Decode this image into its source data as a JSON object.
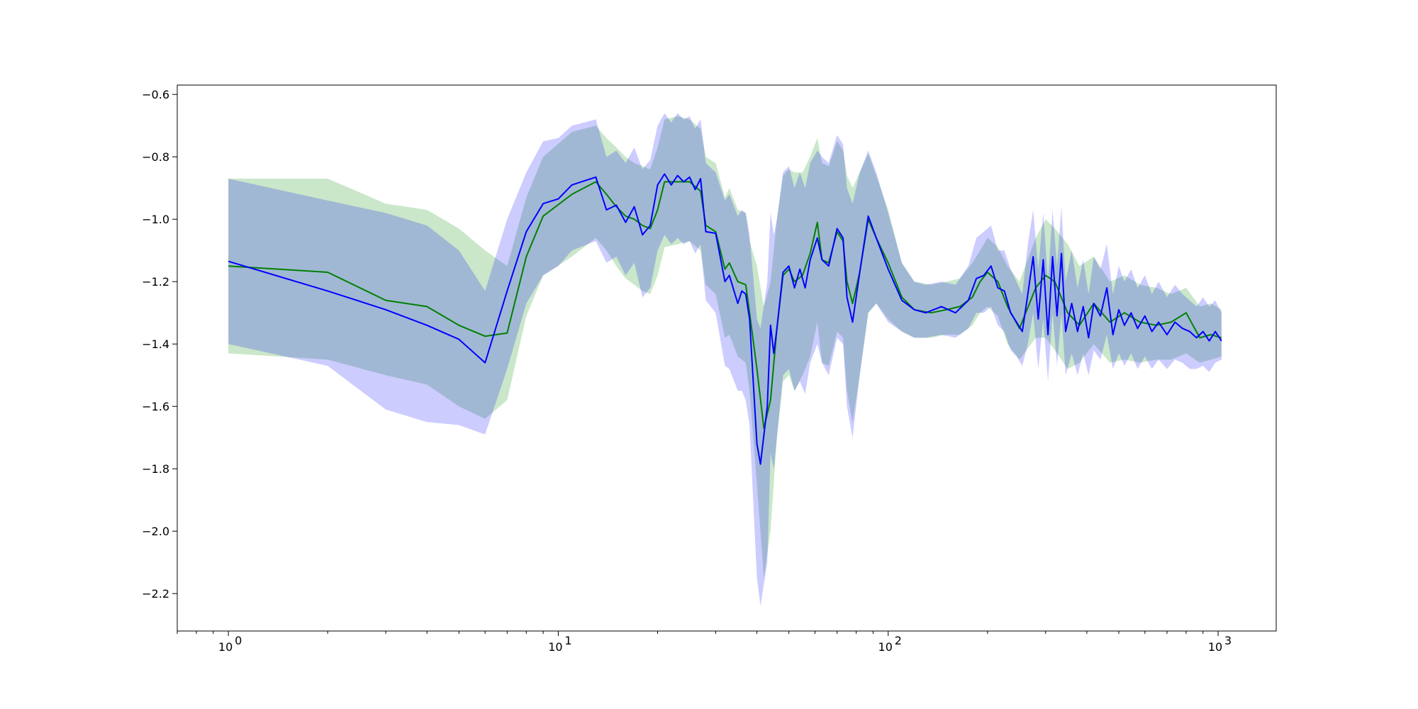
{
  "chart_data": {
    "type": "line",
    "title": "",
    "xlabel": "",
    "ylabel": "",
    "xscale": "log",
    "xlim": [
      0.7,
      1500
    ],
    "ylim": [
      -2.32,
      -0.57
    ],
    "grid": false,
    "legend": "none",
    "x_ticks": [
      {
        "value": 1,
        "base": "10",
        "exp": "0"
      },
      {
        "value": 10,
        "base": "10",
        "exp": "1"
      },
      {
        "value": 100,
        "base": "10",
        "exp": "2"
      },
      {
        "value": 1000,
        "base": "10",
        "exp": "3"
      }
    ],
    "y_ticks": [
      {
        "value": -0.6,
        "label": "−0.6"
      },
      {
        "value": -0.8,
        "label": "−0.8"
      },
      {
        "value": -1.0,
        "label": "−1.0"
      },
      {
        "value": -1.2,
        "label": "−1.2"
      },
      {
        "value": -1.4,
        "label": "−1.4"
      },
      {
        "value": -1.6,
        "label": "−1.6"
      },
      {
        "value": -1.8,
        "label": "−1.8"
      },
      {
        "value": -2.0,
        "label": "−2.0"
      },
      {
        "value": -2.2,
        "label": "−2.2"
      }
    ],
    "series": [
      {
        "color": "#008000",
        "band_color": "#2ca02c",
        "band_opacity": 0.25,
        "points": [
          [
            1,
            -1.15,
            -1.43,
            -0.87
          ],
          [
            2,
            -1.17,
            -1.45,
            -0.87
          ],
          [
            3,
            -1.26,
            -1.5,
            -0.95
          ],
          [
            4,
            -1.28,
            -1.53,
            -0.97
          ],
          [
            5,
            -1.34,
            -1.6,
            -1.03
          ],
          [
            6,
            -1.375,
            -1.64,
            -1.1
          ],
          [
            7,
            -1.365,
            -1.58,
            -1.15
          ],
          [
            8,
            -1.12,
            -1.31,
            -0.93
          ],
          [
            9,
            -0.99,
            -1.18,
            -0.8
          ],
          [
            11,
            -0.92,
            -1.12,
            -0.72
          ],
          [
            13,
            -0.88,
            -1.06,
            -0.7
          ],
          [
            14,
            -0.92,
            -1.1,
            -0.74
          ],
          [
            15,
            -0.96,
            -1.15,
            -0.77
          ],
          [
            16,
            -0.99,
            -1.19,
            -0.8
          ],
          [
            17,
            -1.0,
            -1.21,
            -0.82
          ],
          [
            18,
            -1.02,
            -1.23,
            -0.83
          ],
          [
            19,
            -1.03,
            -1.24,
            -0.84
          ],
          [
            20,
            -0.97,
            -1.18,
            -0.77
          ],
          [
            21,
            -0.88,
            -1.09,
            -0.68
          ],
          [
            23,
            -0.88,
            -1.08,
            -0.67
          ],
          [
            25,
            -0.88,
            -1.07,
            -0.68
          ],
          [
            27,
            -0.91,
            -1.1,
            -0.71
          ],
          [
            28,
            -1.02,
            -1.21,
            -0.8
          ],
          [
            30,
            -1.04,
            -1.24,
            -0.82
          ],
          [
            32,
            -1.16,
            -1.38,
            -0.93
          ],
          [
            33,
            -1.14,
            -1.37,
            -0.9
          ],
          [
            35,
            -1.2,
            -1.44,
            -0.97
          ],
          [
            37,
            -1.21,
            -1.46,
            -0.98
          ],
          [
            38,
            -1.3,
            -1.55,
            -1.07
          ],
          [
            40,
            -1.48,
            -1.85,
            -1.15
          ],
          [
            42,
            -1.67,
            -2.15,
            -1.28
          ],
          [
            44,
            -1.58,
            -2.0,
            -1.2
          ],
          [
            46,
            -1.35,
            -1.7,
            -1.0
          ],
          [
            48,
            -1.18,
            -1.52,
            -0.86
          ],
          [
            50,
            -1.16,
            -1.5,
            -0.84
          ],
          [
            52,
            -1.2,
            -1.55,
            -0.85
          ],
          [
            55,
            -1.18,
            -1.5,
            -0.85
          ],
          [
            58,
            -1.11,
            -1.44,
            -0.8
          ],
          [
            61,
            -1.01,
            -1.33,
            -0.74
          ],
          [
            63,
            -1.13,
            -1.46,
            -0.82
          ],
          [
            66,
            -1.14,
            -1.47,
            -0.83
          ],
          [
            70,
            -1.04,
            -1.36,
            -0.75
          ],
          [
            73,
            -1.07,
            -1.38,
            -0.78
          ],
          [
            75,
            -1.2,
            -1.55,
            -0.86
          ],
          [
            78,
            -1.27,
            -1.65,
            -0.9
          ],
          [
            82,
            -1.17,
            -1.5,
            -0.85
          ],
          [
            87,
            -1.0,
            -1.3,
            -0.79
          ],
          [
            92,
            -1.06,
            -1.27,
            -0.86
          ],
          [
            100,
            -1.14,
            -1.32,
            -0.97
          ],
          [
            110,
            -1.25,
            -1.36,
            -1.14
          ],
          [
            120,
            -1.29,
            -1.38,
            -1.2
          ],
          [
            135,
            -1.3,
            -1.38,
            -1.21
          ],
          [
            150,
            -1.29,
            -1.37,
            -1.2
          ],
          [
            165,
            -1.28,
            -1.37,
            -1.19
          ],
          [
            180,
            -1.25,
            -1.34,
            -1.14
          ],
          [
            190,
            -1.2,
            -1.3,
            -1.1
          ],
          [
            200,
            -1.17,
            -1.28,
            -1.06
          ],
          [
            215,
            -1.2,
            -1.31,
            -1.09
          ],
          [
            230,
            -1.28,
            -1.4,
            -1.15
          ],
          [
            250,
            -1.35,
            -1.45,
            -1.2
          ],
          [
            280,
            -1.22,
            -1.38,
            -1.06
          ],
          [
            300,
            -1.18,
            -1.38,
            -1.0
          ],
          [
            320,
            -1.2,
            -1.42,
            -1.03
          ],
          [
            350,
            -1.3,
            -1.48,
            -1.08
          ],
          [
            380,
            -1.34,
            -1.46,
            -1.15
          ],
          [
            420,
            -1.27,
            -1.4,
            -1.12
          ],
          [
            470,
            -1.33,
            -1.46,
            -1.2
          ],
          [
            520,
            -1.3,
            -1.45,
            -1.18
          ],
          [
            580,
            -1.33,
            -1.46,
            -1.21
          ],
          [
            650,
            -1.34,
            -1.45,
            -1.22
          ],
          [
            720,
            -1.33,
            -1.45,
            -1.24
          ],
          [
            800,
            -1.3,
            -1.43,
            -1.22
          ],
          [
            880,
            -1.38,
            -1.46,
            -1.28
          ],
          [
            950,
            -1.37,
            -1.45,
            -1.27
          ],
          [
            1024,
            -1.38,
            -1.44,
            -1.29
          ]
        ]
      },
      {
        "color": "#0000ff",
        "band_color": "#0000ff",
        "band_opacity": 0.2,
        "points": [
          [
            1,
            -1.135,
            -1.4,
            -0.87
          ],
          [
            2,
            -1.23,
            -1.47,
            -0.94
          ],
          [
            3,
            -1.29,
            -1.61,
            -0.98
          ],
          [
            4,
            -1.34,
            -1.65,
            -1.02
          ],
          [
            5,
            -1.385,
            -1.66,
            -1.1
          ],
          [
            6,
            -1.46,
            -1.69,
            -1.23
          ],
          [
            7,
            -1.23,
            -1.48,
            -1.0
          ],
          [
            8,
            -1.04,
            -1.27,
            -0.85
          ],
          [
            9,
            -0.95,
            -1.18,
            -0.75
          ],
          [
            10,
            -0.935,
            -1.15,
            -0.74
          ],
          [
            11,
            -0.89,
            -1.1,
            -0.7
          ],
          [
            13,
            -0.865,
            -1.07,
            -0.68
          ],
          [
            14,
            -0.97,
            -1.14,
            -0.8
          ],
          [
            15,
            -0.955,
            -1.12,
            -0.78
          ],
          [
            16,
            -1.01,
            -1.18,
            -0.82
          ],
          [
            17,
            -0.96,
            -1.14,
            -0.77
          ],
          [
            18,
            -1.05,
            -1.25,
            -0.84
          ],
          [
            19,
            -1.02,
            -1.22,
            -0.81
          ],
          [
            20,
            -0.89,
            -1.1,
            -0.7
          ],
          [
            21,
            -0.855,
            -1.05,
            -0.66
          ],
          [
            22,
            -0.89,
            -1.08,
            -0.69
          ],
          [
            23,
            -0.86,
            -1.06,
            -0.66
          ],
          [
            24,
            -0.88,
            -1.08,
            -0.68
          ],
          [
            25,
            -0.865,
            -1.07,
            -0.67
          ],
          [
            26,
            -0.905,
            -1.11,
            -0.71
          ],
          [
            27,
            -0.87,
            -1.08,
            -0.68
          ],
          [
            28,
            -1.04,
            -1.26,
            -0.82
          ],
          [
            30,
            -1.045,
            -1.3,
            -0.85
          ],
          [
            32,
            -1.2,
            -1.47,
            -0.94
          ],
          [
            33,
            -1.18,
            -1.48,
            -0.92
          ],
          [
            35,
            -1.27,
            -1.55,
            -0.99
          ],
          [
            36,
            -1.23,
            -1.55,
            -0.97
          ],
          [
            37,
            -1.24,
            -1.58,
            -0.98
          ],
          [
            38,
            -1.32,
            -1.66,
            -1.05
          ],
          [
            40,
            -1.72,
            -2.15,
            -1.32
          ],
          [
            41,
            -1.785,
            -2.24,
            -1.35
          ],
          [
            43,
            -1.6,
            -2.1,
            -1.2
          ],
          [
            44,
            -1.34,
            -1.75,
            -0.98
          ],
          [
            45,
            -1.43,
            -1.8,
            -1.05
          ],
          [
            46,
            -1.35,
            -1.7,
            -1.0
          ],
          [
            48,
            -1.17,
            -1.5,
            -0.85
          ],
          [
            50,
            -1.15,
            -1.48,
            -0.83
          ],
          [
            52,
            -1.22,
            -1.55,
            -0.9
          ],
          [
            54,
            -1.16,
            -1.52,
            -0.85
          ],
          [
            56,
            -1.22,
            -1.56,
            -0.9
          ],
          [
            58,
            -1.13,
            -1.46,
            -0.82
          ],
          [
            61,
            -1.06,
            -1.4,
            -0.78
          ],
          [
            63,
            -1.13,
            -1.46,
            -0.8
          ],
          [
            66,
            -1.15,
            -1.5,
            -0.82
          ],
          [
            70,
            -1.03,
            -1.38,
            -0.73
          ],
          [
            73,
            -1.06,
            -1.4,
            -0.76
          ],
          [
            75,
            -1.25,
            -1.6,
            -0.9
          ],
          [
            78,
            -1.33,
            -1.7,
            -0.95
          ],
          [
            82,
            -1.17,
            -1.5,
            -0.85
          ],
          [
            87,
            -0.99,
            -1.3,
            -0.78
          ],
          [
            92,
            -1.06,
            -1.27,
            -0.85
          ],
          [
            100,
            -1.16,
            -1.33,
            -0.98
          ],
          [
            110,
            -1.26,
            -1.36,
            -1.14
          ],
          [
            120,
            -1.29,
            -1.38,
            -1.2
          ],
          [
            130,
            -1.3,
            -1.38,
            -1.21
          ],
          [
            145,
            -1.28,
            -1.37,
            -1.2
          ],
          [
            160,
            -1.3,
            -1.38,
            -1.21
          ],
          [
            175,
            -1.26,
            -1.35,
            -1.15
          ],
          [
            185,
            -1.19,
            -1.3,
            -1.06
          ],
          [
            195,
            -1.18,
            -1.3,
            -1.04
          ],
          [
            205,
            -1.15,
            -1.28,
            -1.02
          ],
          [
            215,
            -1.22,
            -1.34,
            -1.1
          ],
          [
            225,
            -1.23,
            -1.36,
            -1.1
          ],
          [
            235,
            -1.3,
            -1.42,
            -1.16
          ],
          [
            245,
            -1.33,
            -1.44,
            -1.2
          ],
          [
            255,
            -1.36,
            -1.47,
            -1.24
          ],
          [
            265,
            -1.24,
            -1.4,
            -1.08
          ],
          [
            275,
            -1.12,
            -1.3,
            -0.97
          ],
          [
            285,
            -1.32,
            -1.48,
            -1.16
          ],
          [
            295,
            -1.13,
            -1.32,
            -0.98
          ],
          [
            305,
            -1.37,
            -1.52,
            -1.2
          ],
          [
            315,
            -1.12,
            -1.3,
            -0.97
          ],
          [
            325,
            -1.31,
            -1.47,
            -1.15
          ],
          [
            335,
            -1.11,
            -1.3,
            -0.96
          ],
          [
            345,
            -1.36,
            -1.5,
            -1.2
          ],
          [
            360,
            -1.27,
            -1.43,
            -1.1
          ],
          [
            375,
            -1.36,
            -1.5,
            -1.22
          ],
          [
            390,
            -1.28,
            -1.43,
            -1.13
          ],
          [
            405,
            -1.38,
            -1.5,
            -1.24
          ],
          [
            420,
            -1.27,
            -1.42,
            -1.12
          ],
          [
            440,
            -1.31,
            -1.45,
            -1.16
          ],
          [
            460,
            -1.22,
            -1.37,
            -1.08
          ],
          [
            480,
            -1.37,
            -1.48,
            -1.24
          ],
          [
            500,
            -1.29,
            -1.43,
            -1.15
          ],
          [
            520,
            -1.34,
            -1.47,
            -1.2
          ],
          [
            545,
            -1.3,
            -1.43,
            -1.16
          ],
          [
            570,
            -1.35,
            -1.48,
            -1.22
          ],
          [
            600,
            -1.31,
            -1.44,
            -1.18
          ],
          [
            630,
            -1.36,
            -1.48,
            -1.24
          ],
          [
            660,
            -1.33,
            -1.45,
            -1.2
          ],
          [
            700,
            -1.37,
            -1.48,
            -1.25
          ],
          [
            740,
            -1.33,
            -1.45,
            -1.21
          ],
          [
            780,
            -1.35,
            -1.46,
            -1.24
          ],
          [
            820,
            -1.36,
            -1.48,
            -1.26
          ],
          [
            860,
            -1.38,
            -1.48,
            -1.28
          ],
          [
            900,
            -1.36,
            -1.47,
            -1.25
          ],
          [
            940,
            -1.39,
            -1.49,
            -1.28
          ],
          [
            980,
            -1.36,
            -1.46,
            -1.26
          ],
          [
            1024,
            -1.39,
            -1.45,
            -1.3
          ]
        ]
      }
    ]
  }
}
